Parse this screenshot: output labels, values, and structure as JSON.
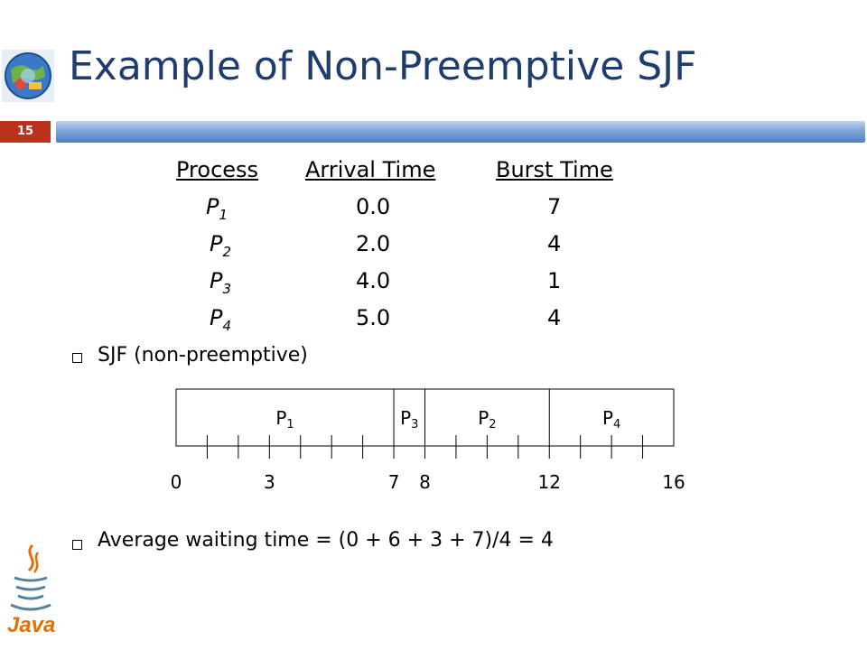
{
  "slide": {
    "title": "Example of Non-Preemptive SJF",
    "number": "15"
  },
  "table": {
    "headers": [
      "Process",
      "Arrival Time",
      "Burst Time"
    ],
    "rows": [
      {
        "name": "P",
        "sub": "1",
        "arrival": "0.0",
        "burst": "7"
      },
      {
        "name": "P",
        "sub": "2",
        "arrival": "2.0",
        "burst": "4"
      },
      {
        "name": "P",
        "sub": "3",
        "arrival": "4.0",
        "burst": "1"
      },
      {
        "name": "P",
        "sub": "4",
        "arrival": "5.0",
        "burst": "4"
      }
    ]
  },
  "bullets": {
    "sjf": "SJF (non-preemptive)",
    "average": "Average waiting time = (0 + 6 + 3 + 7)/4  = 4"
  },
  "gantt": {
    "segments": [
      {
        "name": "P",
        "sub": "1",
        "start": 0,
        "end": 7
      },
      {
        "name": "P",
        "sub": "3",
        "start": 7,
        "end": 8
      },
      {
        "name": "P",
        "sub": "2",
        "start": 8,
        "end": 12
      },
      {
        "name": "P",
        "sub": "4",
        "start": 12,
        "end": 16
      }
    ],
    "time_labels": [
      "0",
      "3",
      "7",
      "8",
      "12",
      "16"
    ],
    "time_values": [
      0,
      3,
      7,
      8,
      12,
      16
    ],
    "range": [
      0,
      16
    ]
  },
  "icons": {
    "logo": "globe-logo-icon",
    "java": "java-logo-icon"
  }
}
